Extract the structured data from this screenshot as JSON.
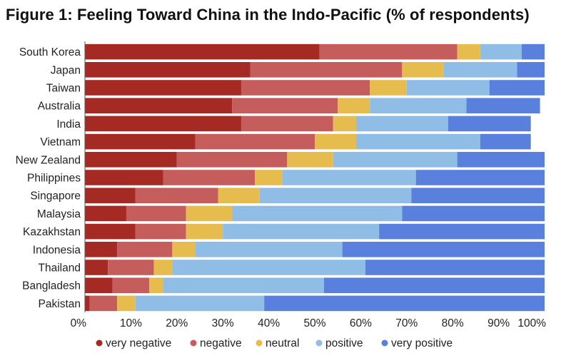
{
  "chart_data": {
    "type": "bar",
    "orientation": "horizontal",
    "stacked": true,
    "title": "Figure 1: Feeling Toward China in the Indo-Pacific (% of respondents)",
    "xlabel": "",
    "ylabel": "",
    "xlim": [
      0,
      100
    ],
    "x_tick_labels": [
      "0%",
      "10%",
      "20%",
      "30%",
      "40%",
      "50%",
      "60%",
      "70%",
      "80%",
      "90%",
      "100%"
    ],
    "legend_position": "bottom",
    "categories": [
      "South Korea",
      "Japan",
      "Taiwan",
      "Australia",
      "India",
      "Vietnam",
      "New Zealand",
      "Philippines",
      "Singapore",
      "Malaysia",
      "Kazakhstan",
      "Indonesia",
      "Thailand",
      "Bangladesh",
      "Pakistan"
    ],
    "series": [
      {
        "name": "very negative",
        "color": "#a52a24",
        "values": [
          51,
          36,
          34,
          32,
          34,
          24,
          20,
          17,
          11,
          9,
          11,
          7,
          5,
          6,
          1
        ]
      },
      {
        "name": "negative",
        "color": "#c65d5d",
        "values": [
          30,
          33,
          28,
          23,
          20,
          26,
          24,
          20,
          18,
          13,
          11,
          12,
          10,
          8,
          6
        ]
      },
      {
        "name": "neutral",
        "color": "#e6bc4e",
        "values": [
          5,
          9,
          8,
          7,
          5,
          9,
          10,
          6,
          9,
          10,
          8,
          5,
          4,
          3,
          4
        ]
      },
      {
        "name": "positive",
        "color": "#8fbde6",
        "values": [
          9,
          16,
          18,
          21,
          20,
          27,
          27,
          29,
          33,
          37,
          34,
          32,
          42,
          35,
          28
        ]
      },
      {
        "name": "very positive",
        "color": "#5a80dd",
        "values": [
          5,
          6,
          12,
          16,
          18,
          11,
          19,
          28,
          29,
          31,
          36,
          44,
          39,
          48,
          61
        ]
      }
    ]
  }
}
